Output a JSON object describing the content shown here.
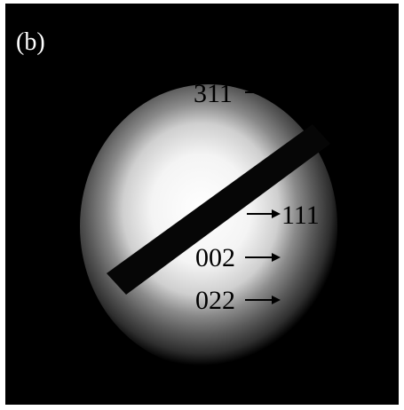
{
  "panel_label": "(b)",
  "labels": [
    "311",
    "111",
    "002",
    "022"
  ]
}
